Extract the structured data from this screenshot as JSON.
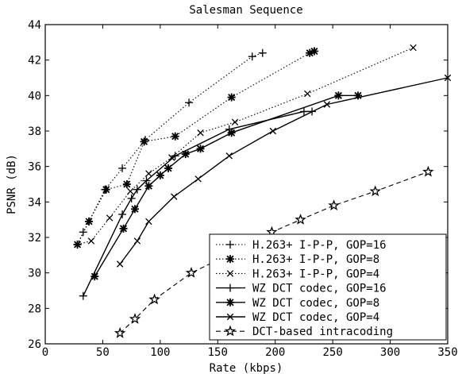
{
  "chart_data": {
    "type": "line",
    "title": "Salesman Sequence",
    "xlabel": "Rate (kbps)",
    "ylabel": "PSNR (dB)",
    "xlim": [
      0,
      350
    ],
    "ylim": [
      26,
      44
    ],
    "xticks": [
      0,
      50,
      100,
      150,
      200,
      250,
      300,
      350
    ],
    "yticks": [
      26,
      28,
      30,
      32,
      34,
      36,
      38,
      40,
      42,
      44
    ],
    "grid": false,
    "legend_position": "bottom-right",
    "series": [
      {
        "name": "H.263+ I-P-P, GOP=16",
        "marker": "plus",
        "line": "dotted",
        "x": [
          28,
          33,
          38,
          52,
          67,
          87,
          125,
          180,
          189
        ],
        "y": [
          31.6,
          32.3,
          32.9,
          34.7,
          35.9,
          37.5,
          39.6,
          42.2,
          42.4
        ]
      },
      {
        "name": "H.263+ I-P-P, GOP=8",
        "marker": "star6",
        "line": "dotted",
        "x": [
          28,
          38,
          53,
          71,
          86,
          113,
          162,
          230,
          234
        ],
        "y": [
          31.6,
          32.9,
          34.7,
          35.0,
          37.4,
          37.7,
          39.9,
          42.4,
          42.5
        ]
      },
      {
        "name": "H.263+ I-P-P, GOP=4",
        "marker": "x",
        "line": "dotted",
        "x": [
          28,
          40,
          56,
          74,
          90,
          110,
          135,
          165,
          228,
          320
        ],
        "y": [
          31.6,
          31.8,
          33.1,
          34.6,
          35.6,
          36.5,
          37.9,
          38.5,
          40.1,
          42.7
        ]
      },
      {
        "name": "WZ DCT codec, GOP=16",
        "marker": "plus",
        "line": "solid",
        "x": [
          33,
          67,
          75,
          80,
          88,
          113,
          160,
          225,
          232
        ],
        "y": [
          28.7,
          33.3,
          34.2,
          34.7,
          35.2,
          36.6,
          38.1,
          39.1,
          39.1
        ]
      },
      {
        "name": "WZ DCT codec, GOP=8",
        "marker": "star6",
        "line": "solid",
        "x": [
          43,
          68,
          78,
          90,
          100,
          107,
          122,
          135,
          162,
          255,
          272
        ],
        "y": [
          29.8,
          32.5,
          33.6,
          34.9,
          35.5,
          35.9,
          36.7,
          37.0,
          37.9,
          40.0,
          40.0
        ]
      },
      {
        "name": "WZ DCT codec, GOP=4",
        "marker": "x",
        "line": "solid",
        "x": [
          65,
          80,
          90,
          112,
          133,
          160,
          198,
          245,
          350
        ],
        "y": [
          30.5,
          31.8,
          32.9,
          34.3,
          35.3,
          36.6,
          38.0,
          39.5,
          41.0
        ]
      },
      {
        "name": "DCT-based intracoding",
        "marker": "star5",
        "line": "dashed",
        "x": [
          65,
          78,
          95,
          127,
          165,
          197,
          222,
          251,
          287,
          333
        ],
        "y": [
          26.6,
          27.4,
          28.5,
          30.0,
          31.2,
          32.3,
          33.0,
          33.8,
          34.6,
          35.7
        ]
      }
    ]
  }
}
